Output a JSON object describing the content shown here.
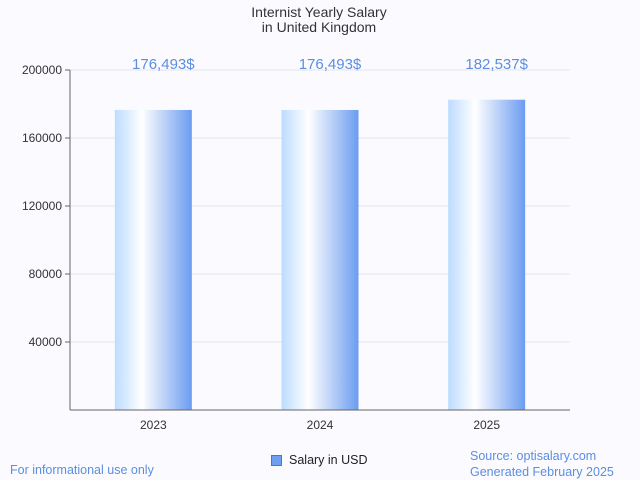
{
  "chart_data": {
    "type": "bar",
    "title": [
      "Internist Yearly Salary",
      "in United Kingdom"
    ],
    "categories": [
      "2023",
      "2024",
      "2025"
    ],
    "series": [
      {
        "name": "Salary in USD",
        "values": [
          176493,
          176493,
          182537
        ]
      }
    ],
    "value_labels": [
      "176,493$",
      "176,493$",
      "182,537$"
    ],
    "yticks": [
      40000,
      80000,
      120000,
      160000,
      200000
    ],
    "ylim": [
      0,
      200000
    ],
    "grid": true,
    "legend": "bottom-center",
    "colors": {
      "bar_light": "#ffffff",
      "bar_mid": "#bcdcff",
      "bar_dark": "#6b9cf0",
      "label": "#5b8ee0"
    }
  },
  "footer": {
    "left": "For informational use only",
    "source": "Source: optisalary.com",
    "generated": "Generated February 2025"
  }
}
